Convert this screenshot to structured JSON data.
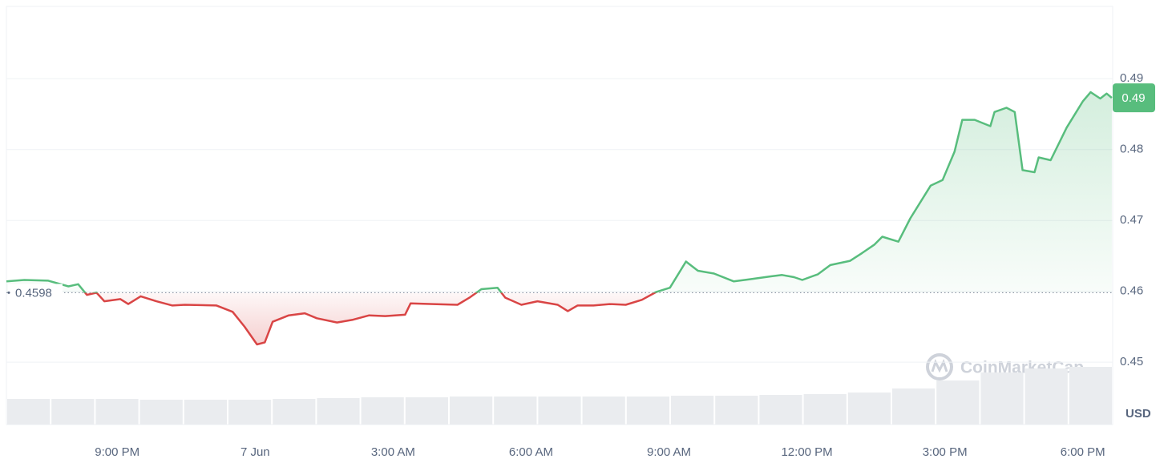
{
  "chart_data": {
    "type": "line",
    "axis_label": "USD",
    "watermark": "CoinMarketCap",
    "color_up": "#58bd7d",
    "color_down": "#d94545",
    "grid": true,
    "baseline": 0.4598,
    "last_price_label": "0.49",
    "xlim": [
      18.59,
      42.65
    ],
    "xticks": [
      {
        "value": 21,
        "label": "9:00 PM"
      },
      {
        "value": 24,
        "label": "7 Jun"
      },
      {
        "value": 27,
        "label": "3:00 AM"
      },
      {
        "value": 30,
        "label": "6:00 AM"
      },
      {
        "value": 33,
        "label": "9:00 AM"
      },
      {
        "value": 36,
        "label": "12:00 PM"
      },
      {
        "value": 39,
        "label": "3:00 PM"
      },
      {
        "value": 42,
        "label": "6:00 PM"
      }
    ],
    "ylim": [
      0.4412,
      0.5002
    ],
    "yticks": [
      0.45,
      0.46,
      0.47,
      0.48,
      0.49
    ],
    "x": [
      18.59,
      18.98,
      19.5,
      19.94,
      20.15,
      20.34,
      20.55,
      20.72,
      21.07,
      21.24,
      21.51,
      21.85,
      22.2,
      22.47,
      23.16,
      23.51,
      23.77,
      24.04,
      24.21,
      24.38,
      24.73,
      25.08,
      25.34,
      25.78,
      26.13,
      26.48,
      26.83,
      27.26,
      27.38,
      27.87,
      28.4,
      28.66,
      28.92,
      29.27,
      29.44,
      29.79,
      30.14,
      30.58,
      30.8,
      31.01,
      31.36,
      31.71,
      32.06,
      32.41,
      32.72,
      33.02,
      33.37,
      33.63,
      33.98,
      34.41,
      34.76,
      35.2,
      35.46,
      35.72,
      35.9,
      36.24,
      36.51,
      36.94,
      37.2,
      37.47,
      37.64,
      37.99,
      38.25,
      38.69,
      38.95,
      39.21,
      39.38,
      39.65,
      39.99,
      40.08,
      40.34,
      40.52,
      40.69,
      40.95,
      41.04,
      41.3,
      41.65,
      42.0,
      42.17,
      42.38,
      42.52,
      42.63
    ],
    "series": [
      {
        "name": "Price",
        "values": [
          0.4614,
          0.4616,
          0.4615,
          0.4607,
          0.461,
          0.4595,
          0.4598,
          0.4586,
          0.4589,
          0.4582,
          0.4593,
          0.4586,
          0.458,
          0.4581,
          0.458,
          0.4571,
          0.455,
          0.4525,
          0.4528,
          0.4557,
          0.4566,
          0.4569,
          0.4562,
          0.4556,
          0.456,
          0.4566,
          0.4565,
          0.4567,
          0.4583,
          0.4582,
          0.4581,
          0.4591,
          0.4603,
          0.4605,
          0.4591,
          0.4581,
          0.4586,
          0.4581,
          0.4572,
          0.458,
          0.458,
          0.4582,
          0.4581,
          0.4588,
          0.4599,
          0.4605,
          0.4642,
          0.4629,
          0.4625,
          0.4614,
          0.4617,
          0.4621,
          0.4623,
          0.462,
          0.4616,
          0.4624,
          0.4637,
          0.4643,
          0.4654,
          0.4666,
          0.4677,
          0.467,
          0.4703,
          0.4749,
          0.4757,
          0.4797,
          0.4842,
          0.4842,
          0.4833,
          0.4853,
          0.4859,
          0.4853,
          0.4771,
          0.4768,
          0.4789,
          0.4785,
          0.4831,
          0.4868,
          0.4881,
          0.4872,
          0.4879,
          0.4873
        ]
      }
    ],
    "volume": {
      "color": "#eaecef",
      "ylim": [
        0,
        100
      ],
      "values": [
        32,
        32,
        32,
        31,
        31,
        31,
        32,
        33,
        34,
        34,
        35,
        35,
        35,
        35,
        35,
        36,
        36,
        37,
        38,
        40,
        45,
        55,
        65,
        70,
        72
      ]
    }
  }
}
